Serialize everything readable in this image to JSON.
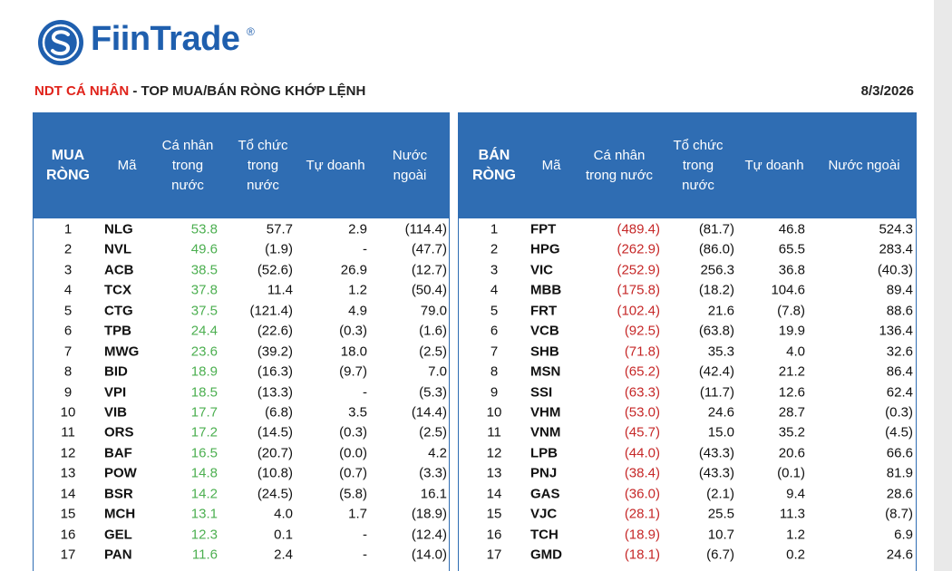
{
  "header": {
    "logo": "FiinTrade",
    "logo_mark": "®",
    "title_highlight": "NDT CÁ NHÂN",
    "title_rest": " - TOP MUA/BÁN RÒNG KHỚP LỆNH",
    "date": "8/3/2026"
  },
  "buy_table": {
    "columns": [
      "MUA RÒNG",
      "Mã",
      "Cá nhân trong nước",
      "Tổ chức trong nước",
      "Tự doanh",
      "Nước ngoài"
    ],
    "rows": [
      [
        "1",
        "NLG",
        "53.8",
        "57.7",
        "2.9",
        "(114.4)"
      ],
      [
        "2",
        "NVL",
        "49.6",
        "(1.9)",
        "-",
        "(47.7)"
      ],
      [
        "3",
        "ACB",
        "38.5",
        "(52.6)",
        "26.9",
        "(12.7)"
      ],
      [
        "4",
        "TCX",
        "37.8",
        "11.4",
        "1.2",
        "(50.4)"
      ],
      [
        "5",
        "CTG",
        "37.5",
        "(121.4)",
        "4.9",
        "79.0"
      ],
      [
        "6",
        "TPB",
        "24.4",
        "(22.6)",
        "(0.3)",
        "(1.6)"
      ],
      [
        "7",
        "MWG",
        "23.6",
        "(39.2)",
        "18.0",
        "(2.5)"
      ],
      [
        "8",
        "BID",
        "18.9",
        "(16.3)",
        "(9.7)",
        "7.0"
      ],
      [
        "9",
        "VPI",
        "18.5",
        "(13.3)",
        "-",
        "(5.3)"
      ],
      [
        "10",
        "VIB",
        "17.7",
        "(6.8)",
        "3.5",
        "(14.4)"
      ],
      [
        "11",
        "ORS",
        "17.2",
        "(14.5)",
        "(0.3)",
        "(2.5)"
      ],
      [
        "12",
        "BAF",
        "16.5",
        "(20.7)",
        "(0.0)",
        "4.2"
      ],
      [
        "13",
        "POW",
        "14.8",
        "(10.8)",
        "(0.7)",
        "(3.3)"
      ],
      [
        "14",
        "BSR",
        "14.2",
        "(24.5)",
        "(5.8)",
        "16.1"
      ],
      [
        "15",
        "MCH",
        "13.1",
        "4.0",
        "1.7",
        "(18.9)"
      ],
      [
        "16",
        "GEL",
        "12.3",
        "0.1",
        "-",
        "(12.4)"
      ],
      [
        "17",
        "PAN",
        "11.6",
        "2.4",
        "-",
        "(14.0)"
      ]
    ]
  },
  "sell_table": {
    "columns": [
      "BÁN RÒNG",
      "Mã",
      "Cá nhân trong nước",
      "Tổ chức trong nước",
      "Tự doanh",
      "Nước ngoài"
    ],
    "rows": [
      [
        "1",
        "FPT",
        "(489.4)",
        "(81.7)",
        "46.8",
        "524.3"
      ],
      [
        "2",
        "HPG",
        "(262.9)",
        "(86.0)",
        "65.5",
        "283.4"
      ],
      [
        "3",
        "VIC",
        "(252.9)",
        "256.3",
        "36.8",
        "(40.3)"
      ],
      [
        "4",
        "MBB",
        "(175.8)",
        "(18.2)",
        "104.6",
        "89.4"
      ],
      [
        "5",
        "FRT",
        "(102.4)",
        "21.6",
        "(7.8)",
        "88.6"
      ],
      [
        "6",
        "VCB",
        "(92.5)",
        "(63.8)",
        "19.9",
        "136.4"
      ],
      [
        "7",
        "SHB",
        "(71.8)",
        "35.3",
        "4.0",
        "32.6"
      ],
      [
        "8",
        "MSN",
        "(65.2)",
        "(42.4)",
        "21.2",
        "86.4"
      ],
      [
        "9",
        "SSI",
        "(63.3)",
        "(11.7)",
        "12.6",
        "62.4"
      ],
      [
        "10",
        "VHM",
        "(53.0)",
        "24.6",
        "28.7",
        "(0.3)"
      ],
      [
        "11",
        "VNM",
        "(45.7)",
        "15.0",
        "35.2",
        "(4.5)"
      ],
      [
        "12",
        "LPB",
        "(44.0)",
        "(43.3)",
        "20.6",
        "66.6"
      ],
      [
        "13",
        "PNJ",
        "(38.4)",
        "(43.3)",
        "(0.1)",
        "81.9"
      ],
      [
        "14",
        "GAS",
        "(36.0)",
        "(2.1)",
        "9.4",
        "28.6"
      ],
      [
        "15",
        "VJC",
        "(28.1)",
        "25.5",
        "11.3",
        "(8.7)"
      ],
      [
        "16",
        "TCH",
        "(18.9)",
        "10.7",
        "1.2",
        "6.9"
      ],
      [
        "17",
        "GMD",
        "(18.1)",
        "(6.7)",
        "0.2",
        "24.6"
      ]
    ]
  }
}
